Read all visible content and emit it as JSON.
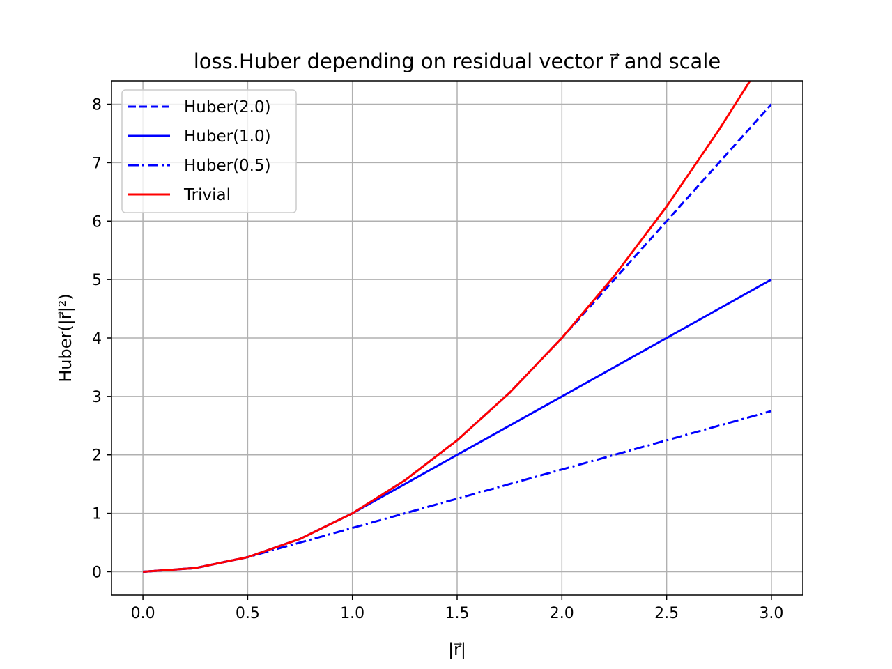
{
  "chart_data": {
    "type": "line",
    "title": "loss.Huber depending on residual vector r⃗ and scale",
    "xlabel": "|r⃗|",
    "ylabel": "Huber(|r⃗|²)",
    "xlim": [
      -0.15,
      3.15
    ],
    "ylim": [
      -0.4,
      8.4
    ],
    "xticks": [
      0.0,
      0.5,
      1.0,
      1.5,
      2.0,
      2.5,
      3.0
    ],
    "xtick_labels": [
      "0.0",
      "0.5",
      "1.0",
      "1.5",
      "2.0",
      "2.5",
      "3.0"
    ],
    "yticks": [
      0,
      1,
      2,
      3,
      4,
      5,
      6,
      7,
      8
    ],
    "ytick_labels": [
      "0",
      "1",
      "2",
      "3",
      "4",
      "5",
      "6",
      "7",
      "8"
    ],
    "grid": true,
    "legend_position": "top-left",
    "series": [
      {
        "name": "Huber(2.0)",
        "color": "#0000ff",
        "style": "dashed",
        "x": [
          0.0,
          0.25,
          0.5,
          0.75,
          1.0,
          1.25,
          1.5,
          1.75,
          2.0,
          2.25,
          2.5,
          2.75,
          3.0
        ],
        "y": [
          0.0,
          0.0625,
          0.25,
          0.5625,
          1.0,
          1.5625,
          2.25,
          3.0625,
          4.0,
          5.0,
          6.0,
          7.0,
          8.0
        ]
      },
      {
        "name": "Huber(1.0)",
        "color": "#0000ff",
        "style": "solid",
        "x": [
          0.0,
          0.25,
          0.5,
          0.75,
          1.0,
          1.5,
          2.0,
          2.5,
          3.0
        ],
        "y": [
          0.0,
          0.0625,
          0.25,
          0.5625,
          1.0,
          2.0,
          3.0,
          4.0,
          5.0
        ]
      },
      {
        "name": "Huber(0.5)",
        "color": "#0000ff",
        "style": "dashdot",
        "x": [
          0.0,
          0.25,
          0.5,
          1.0,
          1.5,
          2.0,
          2.5,
          3.0
        ],
        "y": [
          0.0,
          0.0625,
          0.25,
          0.75,
          1.25,
          1.75,
          2.25,
          2.75
        ]
      },
      {
        "name": "Trivial",
        "color": "#ff0000",
        "style": "solid",
        "x": [
          0.0,
          0.25,
          0.5,
          0.75,
          1.0,
          1.25,
          1.5,
          1.75,
          2.0,
          2.25,
          2.5,
          2.75,
          2.9
        ],
        "y": [
          0.0,
          0.0625,
          0.25,
          0.5625,
          1.0,
          1.5625,
          2.25,
          3.0625,
          4.0,
          5.0625,
          6.25,
          7.5625,
          8.41
        ]
      }
    ]
  }
}
